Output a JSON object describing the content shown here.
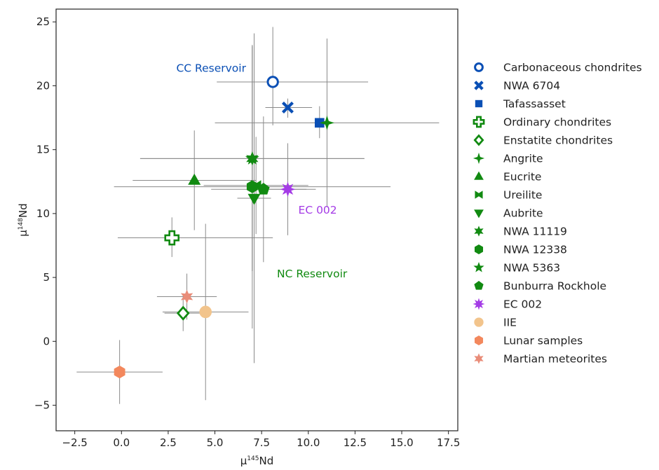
{
  "chart_data": {
    "type": "scatter",
    "xlabel_prefix": "μ",
    "xlabel_sup": "145",
    "xlabel_suffix": "Nd",
    "ylabel_prefix": "μ",
    "ylabel_sup": "148",
    "ylabel_suffix": "Nd",
    "xlim": [
      -3.5,
      18.0
    ],
    "ylim": [
      -7.0,
      26.0
    ],
    "xticks": [
      -2.5,
      0.0,
      2.5,
      5.0,
      7.5,
      10.0,
      12.5,
      15.0,
      17.5
    ],
    "xtick_labels": [
      "−2.5",
      "0.0",
      "2.5",
      "5.0",
      "7.5",
      "10.0",
      "12.5",
      "15.0",
      "17.5"
    ],
    "yticks": [
      -5,
      0,
      5,
      10,
      15,
      20,
      25
    ],
    "ytick_labels": [
      "−5",
      "0",
      "5",
      "10",
      "15",
      "20",
      "25"
    ],
    "grid": false,
    "legend_position": "right, outside plot",
    "colors": {
      "cc_blue": "#0a4fb5",
      "nc_green": "#118a11",
      "ec_purple": "#a43be6",
      "iie_tan": "#f2c48c",
      "lunar": "#f3885d",
      "martian": "#e98c78",
      "errorbar": "#8a8a8a"
    },
    "series": [
      {
        "name": "Carbonaceous chondrites",
        "marker": "circle-open",
        "color": "#0a4fb5",
        "x": 8.1,
        "y": 20.3,
        "xerr": [
          3.0,
          5.1
        ],
        "yerr": [
          3.4,
          4.3
        ]
      },
      {
        "name": "NWA 6704",
        "marker": "x",
        "color": "#0a4fb5",
        "x": 8.9,
        "y": 18.3,
        "xerr": [
          1.2,
          1.3
        ],
        "yerr": [
          0.8,
          0.7
        ]
      },
      {
        "name": "Tafassasset",
        "marker": "square",
        "color": "#0a4fb5",
        "x": 10.6,
        "y": 17.1,
        "xerr": [
          0.5,
          0.5
        ],
        "yerr": [
          1.2,
          1.3
        ]
      },
      {
        "name": "Ordinary chondrites",
        "marker": "plus-open",
        "color": "#118a11",
        "x": null,
        "y": null
      },
      {
        "name": "Enstatite chondrites",
        "marker": "diamond-open",
        "color": "#118a11",
        "x": 3.3,
        "y": 2.2,
        "xerr": [
          1.0,
          1.0
        ],
        "yerr": [
          1.4,
          1.4
        ]
      },
      {
        "name": "Angrite",
        "marker": "star4",
        "color": "#118a11",
        "x": 11.0,
        "y": 17.1,
        "xerr": [
          6.0,
          6.0
        ],
        "yerr": [
          6.6,
          6.6
        ]
      },
      {
        "name": "Eucrite",
        "marker": "triangle-up",
        "color": "#118a11",
        "x": 3.9,
        "y": 12.6,
        "xerr": [
          3.3,
          3.3
        ],
        "yerr": [
          3.9,
          3.9
        ]
      },
      {
        "name": "Ureilite",
        "marker": "bowtie",
        "color": "#118a11",
        "x": 7.2,
        "y": 12.2,
        "xerr": [
          2.8,
          2.8
        ],
        "yerr": [
          3.8,
          3.8
        ]
      },
      {
        "name": "Aubrite",
        "marker": "triangle-down",
        "color": "#118a11",
        "x": 7.1,
        "y": 11.2,
        "xerr": [
          0.9,
          0.9
        ],
        "yerr": [
          12.9,
          12.9
        ]
      },
      {
        "name": "NWA 11119",
        "marker": "star6",
        "color": "#118a11",
        "x": 7.0,
        "y": 14.3,
        "xerr": [
          6.0,
          6.0
        ],
        "yerr": [
          8.8,
          8.8
        ]
      },
      {
        "name": "NWA 12338",
        "marker": "hexagon",
        "color": "#118a11",
        "x": 7.0,
        "y": 12.1,
        "xerr": [
          7.4,
          7.4
        ],
        "yerr": [
          11.1,
          11.1
        ]
      },
      {
        "name": "NWA 5363",
        "marker": "star5",
        "color": "#118a11",
        "x": 7.0,
        "y": 14.3,
        "xerr": [
          6.0,
          6.0
        ],
        "yerr": [
          8.8,
          8.8
        ]
      },
      {
        "name": "Bunburra Rockhole",
        "marker": "pentagon",
        "color": "#118a11",
        "x": 7.6,
        "y": 11.9,
        "xerr": [
          2.8,
          2.8
        ],
        "yerr": [
          5.7,
          5.7
        ]
      },
      {
        "name": "EC 002",
        "marker": "star8",
        "color": "#a43be6",
        "x": 8.9,
        "y": 11.9,
        "xerr": [
          1.0,
          1.0
        ],
        "yerr": [
          3.6,
          3.6
        ]
      },
      {
        "name": "IIE",
        "marker": "circle",
        "color": "#f2c48c",
        "x": 4.5,
        "y": 2.3,
        "xerr": [
          2.3,
          2.3
        ],
        "yerr": [
          6.9,
          6.9
        ]
      },
      {
        "name": "Lunar samples",
        "marker": "hexagon",
        "color": "#f3885d",
        "x": -0.1,
        "y": -2.4,
        "xerr": [
          2.3,
          2.3
        ],
        "yerr": [
          2.5,
          2.5
        ]
      },
      {
        "name": "Martian meteorites",
        "marker": "star6",
        "color": "#e98c78",
        "x": 3.5,
        "y": 3.5,
        "xerr": [
          1.6,
          1.6
        ],
        "yerr": [
          1.8,
          1.8
        ]
      }
    ],
    "extra_points": [
      {
        "series": "Ordinary chondrites",
        "marker": "plus-open",
        "color": "#118a11",
        "x": 2.7,
        "y": 8.1,
        "xerr": [
          2.9,
          5.4
        ],
        "yerr": [
          1.5,
          1.6
        ]
      }
    ],
    "annotations": [
      {
        "text": "CC Reservoir",
        "color": "#0a4fb5",
        "x": 4.8,
        "y": 21.1
      },
      {
        "text": "NC Reservoir",
        "color": "#118a11",
        "x": 10.2,
        "y": 5.0
      },
      {
        "text": "EC 002",
        "color": "#a43be6",
        "x": 10.5,
        "y": 10.0
      }
    ]
  }
}
